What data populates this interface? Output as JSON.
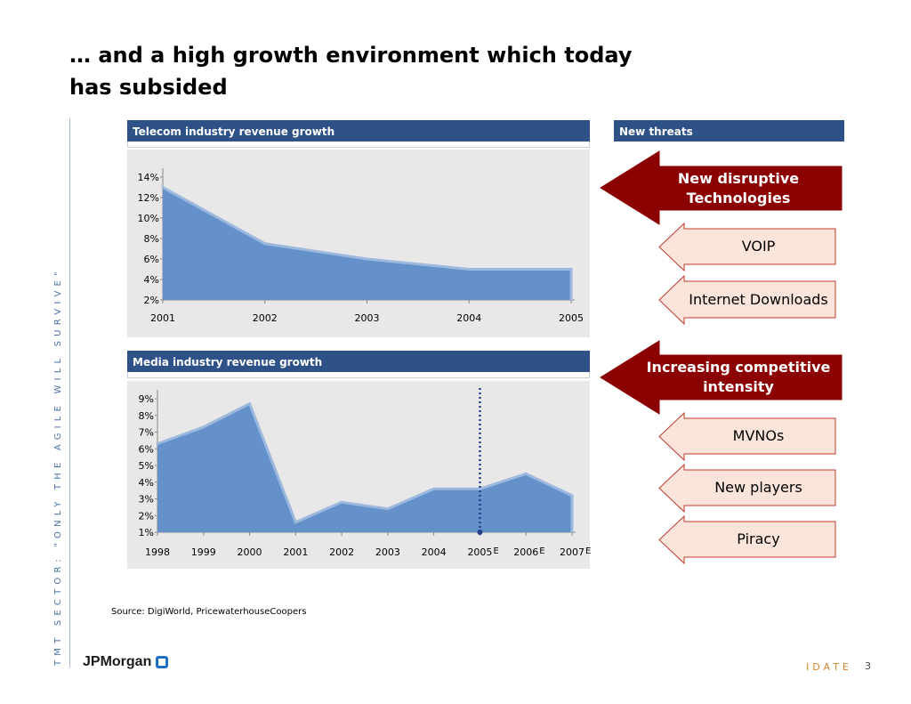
{
  "slide": {
    "title": "… and a high growth environment which today has subsided",
    "sidebar_text": "TMT SECTOR: \"ONLY THE AGILE WILL SURVIVE\"",
    "source": "Source: DigiWorld, PricewaterhouseCoopers",
    "logo_text": "JPMorgan",
    "footer_brand": "IDATE",
    "page_number": "3"
  },
  "panels": {
    "telecom_title": "Telecom industry revenue growth",
    "media_title": "Media industry revenue growth",
    "threats_title": "New threats"
  },
  "threats": [
    {
      "label": "New disruptive Technologies",
      "kind": "major",
      "color": "#8b0000"
    },
    {
      "label": "VOIP",
      "kind": "minor",
      "color": "#fbe5da"
    },
    {
      "label": "Internet Downloads",
      "kind": "minor",
      "color": "#fbe5da"
    },
    {
      "label": "Increasing competitive intensity",
      "kind": "major",
      "color": "#8b0000"
    },
    {
      "label": "MVNOs",
      "kind": "minor",
      "color": "#fbe5da"
    },
    {
      "label": "New players",
      "kind": "minor",
      "color": "#fbe5da"
    },
    {
      "label": "Piracy",
      "kind": "minor",
      "color": "#fbe5da"
    }
  ],
  "chart_data": [
    {
      "type": "area",
      "title": "Telecom industry revenue growth",
      "categories": [
        "2001",
        "2002",
        "2003",
        "2004",
        "2005"
      ],
      "values": [
        13.0,
        7.5,
        6.0,
        5.0,
        5.0
      ],
      "yticks": [
        "14%",
        "12%",
        "10%",
        "8%",
        "6%",
        "4%",
        "2%"
      ],
      "ylim": [
        2,
        14
      ],
      "grid": false,
      "fill_color": "#6591cb",
      "line_color": "#9db8de"
    },
    {
      "type": "area",
      "title": "Media industry revenue growth",
      "categories": [
        "1998",
        "1999",
        "2000",
        "2001",
        "2002",
        "2003",
        "2004",
        "2005",
        "2006",
        "2007"
      ],
      "estimate_marker": "E",
      "estimate_categories": [
        "2005",
        "2006",
        "2007"
      ],
      "values": [
        6.3,
        7.3,
        8.7,
        1.6,
        2.8,
        2.4,
        3.6,
        3.6,
        4.5,
        3.2
      ],
      "yticks": [
        "9%",
        "8%",
        "7%",
        "6%",
        "5%",
        "4%",
        "3%",
        "2%",
        "1%"
      ],
      "ylim": [
        1,
        9
      ],
      "grid": false,
      "divider_at": "2005",
      "fill_color": "#6591cb",
      "line_color": "#9db8de"
    }
  ]
}
